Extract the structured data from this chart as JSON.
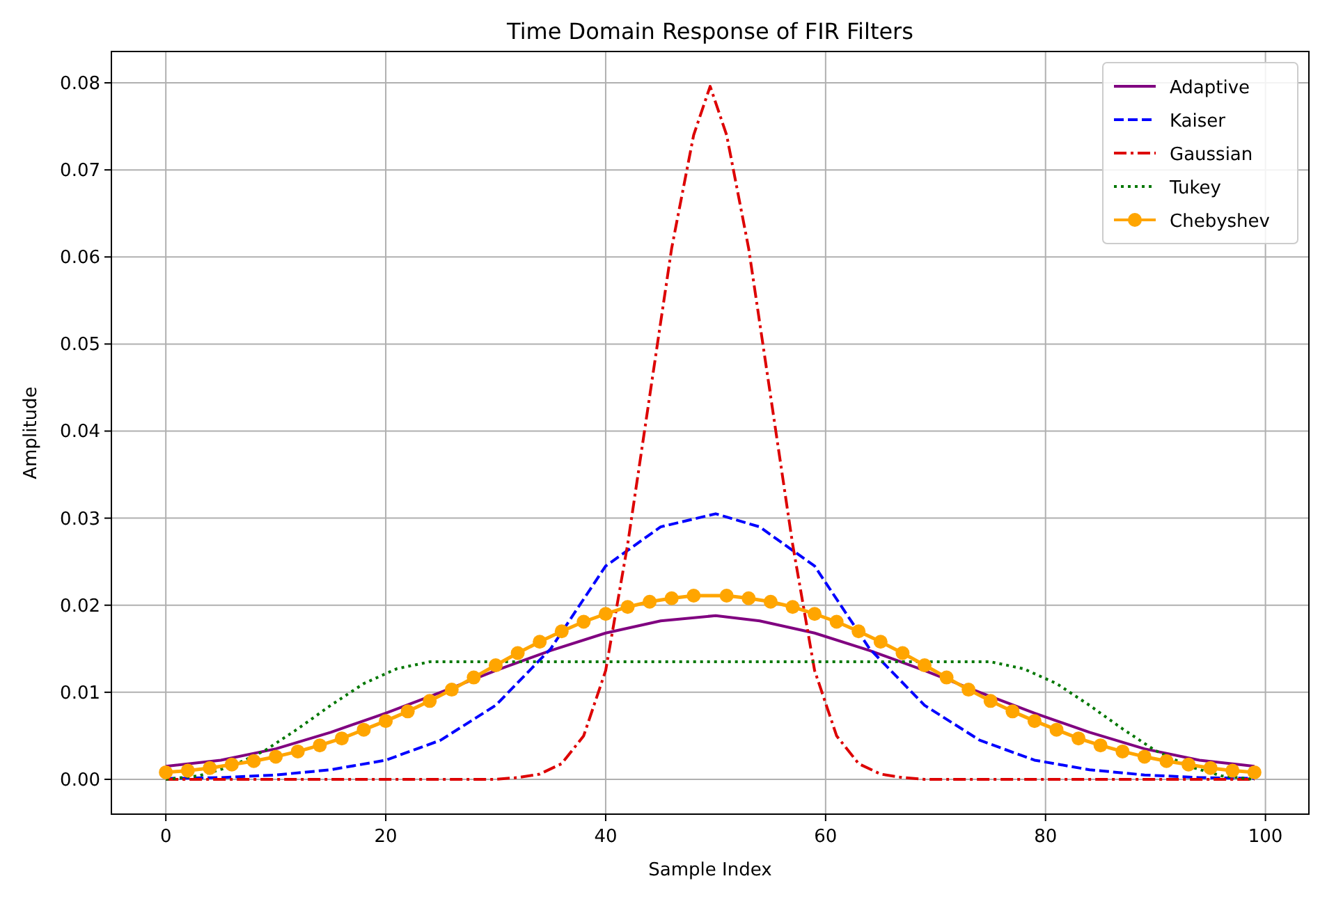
{
  "chart_data": {
    "type": "line",
    "title": "Time Domain Response of FIR Filters",
    "xlabel": "Sample Index",
    "ylabel": "Amplitude",
    "xlim": [
      -4.95,
      103.95
    ],
    "ylim": [
      -0.004,
      0.0836
    ],
    "xticks": [
      0,
      20,
      40,
      60,
      80,
      100
    ],
    "yticks": [
      {
        "value": 0,
        "label": "0.00"
      },
      {
        "value": 0.01,
        "label": "0.01"
      },
      {
        "value": 0.02,
        "label": "0.02"
      },
      {
        "value": 0.03,
        "label": "0.03"
      },
      {
        "value": 0.04,
        "label": "0.04"
      },
      {
        "value": 0.05,
        "label": "0.05"
      },
      {
        "value": 0.06,
        "label": "0.06"
      },
      {
        "value": 0.07,
        "label": "0.07"
      },
      {
        "value": 0.08,
        "label": "0.08"
      }
    ],
    "grid": true,
    "legend": "top right",
    "series": [
      {
        "name": "Adaptive",
        "color": "#800080",
        "line_style": "solid",
        "marker": "none",
        "x": [
          0,
          5,
          10,
          15,
          20,
          25,
          30,
          35,
          40,
          45,
          50,
          54,
          59,
          64,
          69,
          74,
          79,
          84,
          89,
          94,
          99
        ],
        "values": [
          0.0015,
          0.0022,
          0.0035,
          0.0054,
          0.0076,
          0.01,
          0.0125,
          0.0148,
          0.0168,
          0.0182,
          0.0188,
          0.0182,
          0.0168,
          0.0148,
          0.0125,
          0.01,
          0.0076,
          0.0054,
          0.0035,
          0.0022,
          0.0015
        ]
      },
      {
        "name": "Kaiser",
        "color": "#0000ff",
        "line_style": "dashed",
        "marker": "none",
        "x": [
          0,
          5,
          10,
          15,
          20,
          25,
          30,
          35,
          40,
          45,
          50,
          54,
          59,
          64,
          69,
          74,
          79,
          84,
          89,
          94,
          99
        ],
        "values": [
          0.0001,
          0.0002,
          0.0005,
          0.0011,
          0.0022,
          0.0045,
          0.0085,
          0.015,
          0.0245,
          0.029,
          0.0305,
          0.029,
          0.0245,
          0.015,
          0.0085,
          0.0045,
          0.0022,
          0.0011,
          0.0005,
          0.0002,
          0.0001
        ]
      },
      {
        "name": "Gaussian",
        "color": "#dd0000",
        "line_style": "dashdot",
        "marker": "none",
        "x": [
          0,
          10,
          20,
          30,
          32,
          34,
          36,
          38,
          40,
          42,
          44,
          46,
          48,
          49.5,
          51,
          53,
          55,
          57,
          59,
          61,
          63,
          65,
          67,
          69,
          79,
          89,
          99
        ],
        "values": [
          0,
          0,
          0,
          0,
          0.0002,
          0.0006,
          0.0018,
          0.005,
          0.0125,
          0.027,
          0.044,
          0.061,
          0.074,
          0.0796,
          0.074,
          0.061,
          0.044,
          0.027,
          0.0125,
          0.005,
          0.0018,
          0.0006,
          0.0002,
          0,
          0,
          0,
          0
        ]
      },
      {
        "name": "Tukey",
        "color": "#007700",
        "line_style": "dotted",
        "marker": "none",
        "x": [
          0,
          3,
          6,
          9,
          12,
          15,
          18,
          21,
          24,
          25,
          74,
          75,
          78,
          81,
          84,
          87,
          90,
          93,
          96,
          99
        ],
        "values": [
          0,
          0.0004,
          0.0015,
          0.0033,
          0.0058,
          0.0085,
          0.011,
          0.0127,
          0.0135,
          0.0135,
          0.0135,
          0.0135,
          0.0127,
          0.011,
          0.0085,
          0.0058,
          0.0033,
          0.0015,
          0.0004,
          0
        ]
      },
      {
        "name": "Chebyshev",
        "color": "#ffa500",
        "line_style": "solid",
        "marker": "circle",
        "x": [
          0,
          2,
          4,
          6,
          8,
          10,
          12,
          14,
          16,
          18,
          20,
          22,
          24,
          26,
          28,
          30,
          32,
          34,
          36,
          38,
          40,
          42,
          44,
          46,
          48,
          51,
          53,
          55,
          57,
          59,
          61,
          63,
          65,
          67,
          69,
          71,
          73,
          75,
          77,
          79,
          81,
          83,
          85,
          87,
          89,
          91,
          93,
          95,
          97,
          99
        ],
        "values": [
          0.0008,
          0.001,
          0.0013,
          0.0017,
          0.0021,
          0.0026,
          0.0032,
          0.0039,
          0.0047,
          0.0057,
          0.0067,
          0.0078,
          0.009,
          0.0103,
          0.0117,
          0.0131,
          0.0145,
          0.0158,
          0.017,
          0.0181,
          0.019,
          0.0198,
          0.0204,
          0.0208,
          0.0211,
          0.0211,
          0.0208,
          0.0204,
          0.0198,
          0.019,
          0.0181,
          0.017,
          0.0158,
          0.0145,
          0.0131,
          0.0117,
          0.0103,
          0.009,
          0.0078,
          0.0067,
          0.0057,
          0.0047,
          0.0039,
          0.0032,
          0.0026,
          0.0021,
          0.0017,
          0.0013,
          0.001,
          0.0008
        ]
      }
    ]
  }
}
